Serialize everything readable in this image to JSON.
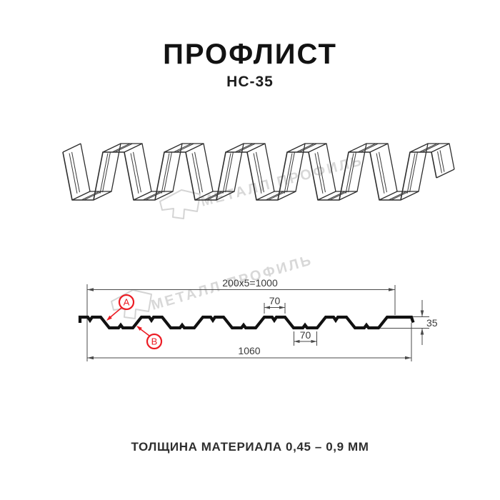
{
  "title": "ПРОФЛИСТ",
  "subtitle": "НС-35",
  "footer": "ТОЛЩИНА МАТЕРИАЛА 0,45 – 0,9 ММ",
  "watermark": {
    "text": "МЕТАЛЛ ПРОФИЛЬ"
  },
  "dimensions": {
    "modular_width": "200x5=1000",
    "top_flange_width": "70",
    "valley_width": "70",
    "overall_width": "1060",
    "profile_height": "35"
  },
  "callouts": {
    "a": "A",
    "b": "B"
  },
  "colors": {
    "red": "#ec1c24",
    "line_dark": "#111111",
    "line_medium": "#2d2d2d",
    "dim_line": "#4a4a4a",
    "watermark": "#d8d8d8",
    "background": "#ffffff"
  }
}
